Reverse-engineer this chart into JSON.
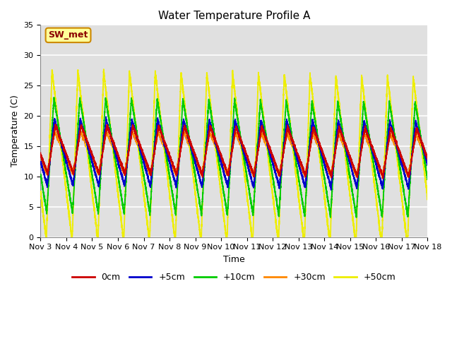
{
  "title": "Water Temperature Profile A",
  "xlabel": "Time",
  "ylabel": "Temperature (C)",
  "ylim": [
    0,
    35
  ],
  "yticks": [
    0,
    5,
    10,
    15,
    20,
    25,
    30,
    35
  ],
  "n_days": 15,
  "x_tick_labels": [
    "Nov 3",
    "Nov 4",
    "Nov 5",
    "Nov 6",
    "Nov 7",
    "Nov 8",
    "Nov 9",
    "Nov 10",
    "Nov 11",
    "Nov 12",
    "Nov 13",
    "Nov 14",
    "Nov 15",
    "Nov 16",
    "Nov 17",
    "Nov 18"
  ],
  "series_colors": {
    "0cm": "#cc0000",
    "+5cm": "#0000cc",
    "+10cm": "#00cc00",
    "+30cm": "#ff8800",
    "+50cm": "#eeee00"
  },
  "legend_label": "SW_met",
  "legend_box_facecolor": "#ffff99",
  "legend_box_edgecolor": "#cc8800",
  "plot_bg_color": "#e0e0e0",
  "fig_bg_color": "#ffffff",
  "grid_color": "#ffffff",
  "grid_linewidth": 1.2,
  "line_width": 1.3,
  "title_fontsize": 11,
  "axis_label_fontsize": 9,
  "tick_fontsize": 8,
  "legend_fontsize": 9,
  "base_0cm": 14.5,
  "base_5cm": 14.0,
  "base_10cm": 13.5,
  "base_30cm": 14.0,
  "base_50cm": 13.5,
  "amp_0cm": 4.0,
  "amp_5cm": 5.5,
  "amp_10cm": 9.5,
  "amp_30cm": 3.5,
  "amp_50cm": 14.0,
  "cycles_per_day": 1.0,
  "asymmetry": 0.35,
  "trend_0cm": -0.04,
  "trend_5cm": -0.03,
  "trend_10cm": -0.05,
  "trend_30cm": -0.03,
  "trend_50cm": -0.07,
  "noise_scale": 0.15
}
